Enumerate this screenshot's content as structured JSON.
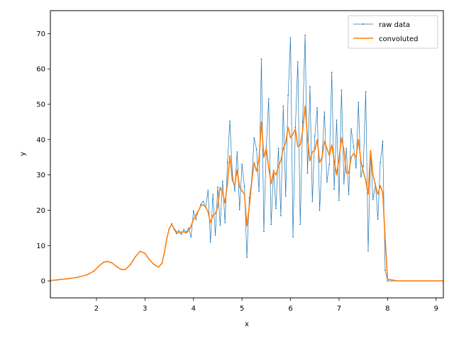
{
  "chart_data": {
    "type": "line",
    "title": "",
    "xlabel": "x",
    "ylabel": "y",
    "xlim": [
      1.05,
      9.15
    ],
    "ylim": [
      -4.8,
      76.5
    ],
    "x_ticks": [
      2,
      3,
      4,
      5,
      6,
      7,
      8,
      9
    ],
    "y_ticks": [
      0,
      10,
      20,
      30,
      40,
      50,
      60,
      70
    ],
    "grid": false,
    "legend_position": "top-right",
    "series": [
      {
        "name": "raw data",
        "color": "#1f77b4",
        "style": "thin line with small point markers",
        "points": [
          [
            1.05,
            0.1
          ],
          [
            1.2,
            0.3
          ],
          [
            1.4,
            0.6
          ],
          [
            1.6,
            1.0
          ],
          [
            1.8,
            1.7
          ],
          [
            1.95,
            2.8
          ],
          [
            2.05,
            4.2
          ],
          [
            2.15,
            5.3
          ],
          [
            2.22,
            5.5
          ],
          [
            2.32,
            5.1
          ],
          [
            2.42,
            4.0
          ],
          [
            2.52,
            3.2
          ],
          [
            2.6,
            3.3
          ],
          [
            2.7,
            4.6
          ],
          [
            2.8,
            6.8
          ],
          [
            2.9,
            8.4
          ],
          [
            3.0,
            7.8
          ],
          [
            3.08,
            6.2
          ],
          [
            3.18,
            4.7
          ],
          [
            3.28,
            3.9
          ],
          [
            3.35,
            5.0
          ],
          [
            3.4,
            8.0
          ],
          [
            3.45,
            12.0
          ],
          [
            3.5,
            14.8
          ],
          [
            3.55,
            16.2
          ],
          [
            3.6,
            14.6
          ],
          [
            3.65,
            13.4
          ],
          [
            3.7,
            14.2
          ],
          [
            3.75,
            13.2
          ],
          [
            3.8,
            14.5
          ],
          [
            3.85,
            13.8
          ],
          [
            3.9,
            14.9
          ],
          [
            3.95,
            12.5
          ],
          [
            4.0,
            19.8
          ],
          [
            4.05,
            17.4
          ],
          [
            4.1,
            19.8
          ],
          [
            4.15,
            21.6
          ],
          [
            4.2,
            22.5
          ],
          [
            4.25,
            20.8
          ],
          [
            4.3,
            25.6
          ],
          [
            4.35,
            11.0
          ],
          [
            4.4,
            24.5
          ],
          [
            4.45,
            13.0
          ],
          [
            4.5,
            26.5
          ],
          [
            4.55,
            15.8
          ],
          [
            4.6,
            28.2
          ],
          [
            4.65,
            16.5
          ],
          [
            4.7,
            33.5
          ],
          [
            4.75,
            45.2
          ],
          [
            4.8,
            30.6
          ],
          [
            4.85,
            25.5
          ],
          [
            4.9,
            36.5
          ],
          [
            4.95,
            20.2
          ],
          [
            5.0,
            33.0
          ],
          [
            5.05,
            26.8
          ],
          [
            5.1,
            6.7
          ],
          [
            5.15,
            23.4
          ],
          [
            5.2,
            28.7
          ],
          [
            5.25,
            40.5
          ],
          [
            5.3,
            37.2
          ],
          [
            5.35,
            25.3
          ],
          [
            5.4,
            62.8
          ],
          [
            5.45,
            14.0
          ],
          [
            5.5,
            38.0
          ],
          [
            5.55,
            51.5
          ],
          [
            5.6,
            16.0
          ],
          [
            5.65,
            31.3
          ],
          [
            5.7,
            20.5
          ],
          [
            5.75,
            37.5
          ],
          [
            5.8,
            18.5
          ],
          [
            5.85,
            49.5
          ],
          [
            5.9,
            24.0
          ],
          [
            5.95,
            52.5
          ],
          [
            6.0,
            68.8
          ],
          [
            6.05,
            12.5
          ],
          [
            6.1,
            43.5
          ],
          [
            6.15,
            62.0
          ],
          [
            6.2,
            16.0
          ],
          [
            6.25,
            45.0
          ],
          [
            6.3,
            69.5
          ],
          [
            6.35,
            30.5
          ],
          [
            6.4,
            55.0
          ],
          [
            6.45,
            22.5
          ],
          [
            6.5,
            41.0
          ],
          [
            6.55,
            49.0
          ],
          [
            6.6,
            20.0
          ],
          [
            6.65,
            35.0
          ],
          [
            6.7,
            47.8
          ],
          [
            6.75,
            28.0
          ],
          [
            6.8,
            33.0
          ],
          [
            6.85,
            59.0
          ],
          [
            6.9,
            26.0
          ],
          [
            6.95,
            45.5
          ],
          [
            7.0,
            22.8
          ],
          [
            7.05,
            54.0
          ],
          [
            7.1,
            27.5
          ],
          [
            7.15,
            37.5
          ],
          [
            7.2,
            24.5
          ],
          [
            7.25,
            43.0
          ],
          [
            7.3,
            38.0
          ],
          [
            7.35,
            32.0
          ],
          [
            7.4,
            50.5
          ],
          [
            7.45,
            29.5
          ],
          [
            7.5,
            32.5
          ],
          [
            7.55,
            53.5
          ],
          [
            7.6,
            8.5
          ],
          [
            7.65,
            36.0
          ],
          [
            7.7,
            23.0
          ],
          [
            7.75,
            27.5
          ],
          [
            7.8,
            17.5
          ],
          [
            7.85,
            33.5
          ],
          [
            7.9,
            39.5
          ],
          [
            7.95,
            3.0
          ],
          [
            8.0,
            0.0
          ],
          [
            8.2,
            0.0
          ],
          [
            8.5,
            0.0
          ],
          [
            8.8,
            0.0
          ],
          [
            9.15,
            0.0
          ]
        ]
      },
      {
        "name": "convoluted",
        "color": "#ff7f0e",
        "style": "solid line",
        "points": [
          [
            1.05,
            0.1
          ],
          [
            1.2,
            0.3
          ],
          [
            1.4,
            0.6
          ],
          [
            1.6,
            1.0
          ],
          [
            1.8,
            1.7
          ],
          [
            1.95,
            2.8
          ],
          [
            2.05,
            4.2
          ],
          [
            2.15,
            5.3
          ],
          [
            2.22,
            5.5
          ],
          [
            2.32,
            5.1
          ],
          [
            2.42,
            4.0
          ],
          [
            2.52,
            3.2
          ],
          [
            2.6,
            3.3
          ],
          [
            2.7,
            4.6
          ],
          [
            2.8,
            6.8
          ],
          [
            2.9,
            8.4
          ],
          [
            3.0,
            7.8
          ],
          [
            3.08,
            6.2
          ],
          [
            3.18,
            4.7
          ],
          [
            3.28,
            3.9
          ],
          [
            3.35,
            5.0
          ],
          [
            3.4,
            8.0
          ],
          [
            3.45,
            12.0
          ],
          [
            3.5,
            14.8
          ],
          [
            3.55,
            16.0
          ],
          [
            3.6,
            14.8
          ],
          [
            3.65,
            13.9
          ],
          [
            3.7,
            13.7
          ],
          [
            3.75,
            13.8
          ],
          [
            3.8,
            13.9
          ],
          [
            3.85,
            13.6
          ],
          [
            3.9,
            14.2
          ],
          [
            3.95,
            15.5
          ],
          [
            4.0,
            17.5
          ],
          [
            4.05,
            18.6
          ],
          [
            4.1,
            19.8
          ],
          [
            4.15,
            21.3
          ],
          [
            4.2,
            21.5
          ],
          [
            4.25,
            21.0
          ],
          [
            4.3,
            19.5
          ],
          [
            4.35,
            16.5
          ],
          [
            4.4,
            18.5
          ],
          [
            4.45,
            19.0
          ],
          [
            4.5,
            21.0
          ],
          [
            4.55,
            26.5
          ],
          [
            4.6,
            25.0
          ],
          [
            4.65,
            22.0
          ],
          [
            4.7,
            27.5
          ],
          [
            4.75,
            35.5
          ],
          [
            4.8,
            28.5
          ],
          [
            4.85,
            27.0
          ],
          [
            4.9,
            31.5
          ],
          [
            4.95,
            26.5
          ],
          [
            5.0,
            25.5
          ],
          [
            5.05,
            24.5
          ],
          [
            5.1,
            15.5
          ],
          [
            5.15,
            21.0
          ],
          [
            5.2,
            28.0
          ],
          [
            5.25,
            33.5
          ],
          [
            5.3,
            31.0
          ],
          [
            5.35,
            34.5
          ],
          [
            5.4,
            45.0
          ],
          [
            5.45,
            35.0
          ],
          [
            5.5,
            37.5
          ],
          [
            5.55,
            32.0
          ],
          [
            5.6,
            27.5
          ],
          [
            5.65,
            31.0
          ],
          [
            5.7,
            30.0
          ],
          [
            5.75,
            32.5
          ],
          [
            5.8,
            34.0
          ],
          [
            5.85,
            37.5
          ],
          [
            5.9,
            39.0
          ],
          [
            5.95,
            43.5
          ],
          [
            6.0,
            40.5
          ],
          [
            6.05,
            41.5
          ],
          [
            6.1,
            43.0
          ],
          [
            6.15,
            38.0
          ],
          [
            6.2,
            38.5
          ],
          [
            6.25,
            42.5
          ],
          [
            6.3,
            49.5
          ],
          [
            6.35,
            40.5
          ],
          [
            6.4,
            34.0
          ],
          [
            6.45,
            36.5
          ],
          [
            6.5,
            37.0
          ],
          [
            6.55,
            40.0
          ],
          [
            6.6,
            33.5
          ],
          [
            6.65,
            35.0
          ],
          [
            6.7,
            39.5
          ],
          [
            6.75,
            37.5
          ],
          [
            6.8,
            35.5
          ],
          [
            6.85,
            38.5
          ],
          [
            6.9,
            34.0
          ],
          [
            6.95,
            30.0
          ],
          [
            7.0,
            34.5
          ],
          [
            7.05,
            40.5
          ],
          [
            7.1,
            37.0
          ],
          [
            7.15,
            30.5
          ],
          [
            7.2,
            30.5
          ],
          [
            7.25,
            35.0
          ],
          [
            7.3,
            36.0
          ],
          [
            7.35,
            35.0
          ],
          [
            7.4,
            40.0
          ],
          [
            7.45,
            34.0
          ],
          [
            7.5,
            31.0
          ],
          [
            7.55,
            28.5
          ],
          [
            7.6,
            24.5
          ],
          [
            7.65,
            37.0
          ],
          [
            7.7,
            30.0
          ],
          [
            7.75,
            27.0
          ],
          [
            7.8,
            24.5
          ],
          [
            7.85,
            27.0
          ],
          [
            7.9,
            25.0
          ],
          [
            7.95,
            12.0
          ],
          [
            8.0,
            0.5
          ],
          [
            8.2,
            0.0
          ],
          [
            8.5,
            0.0
          ],
          [
            8.8,
            0.0
          ],
          [
            9.15,
            0.0
          ]
        ]
      }
    ]
  }
}
